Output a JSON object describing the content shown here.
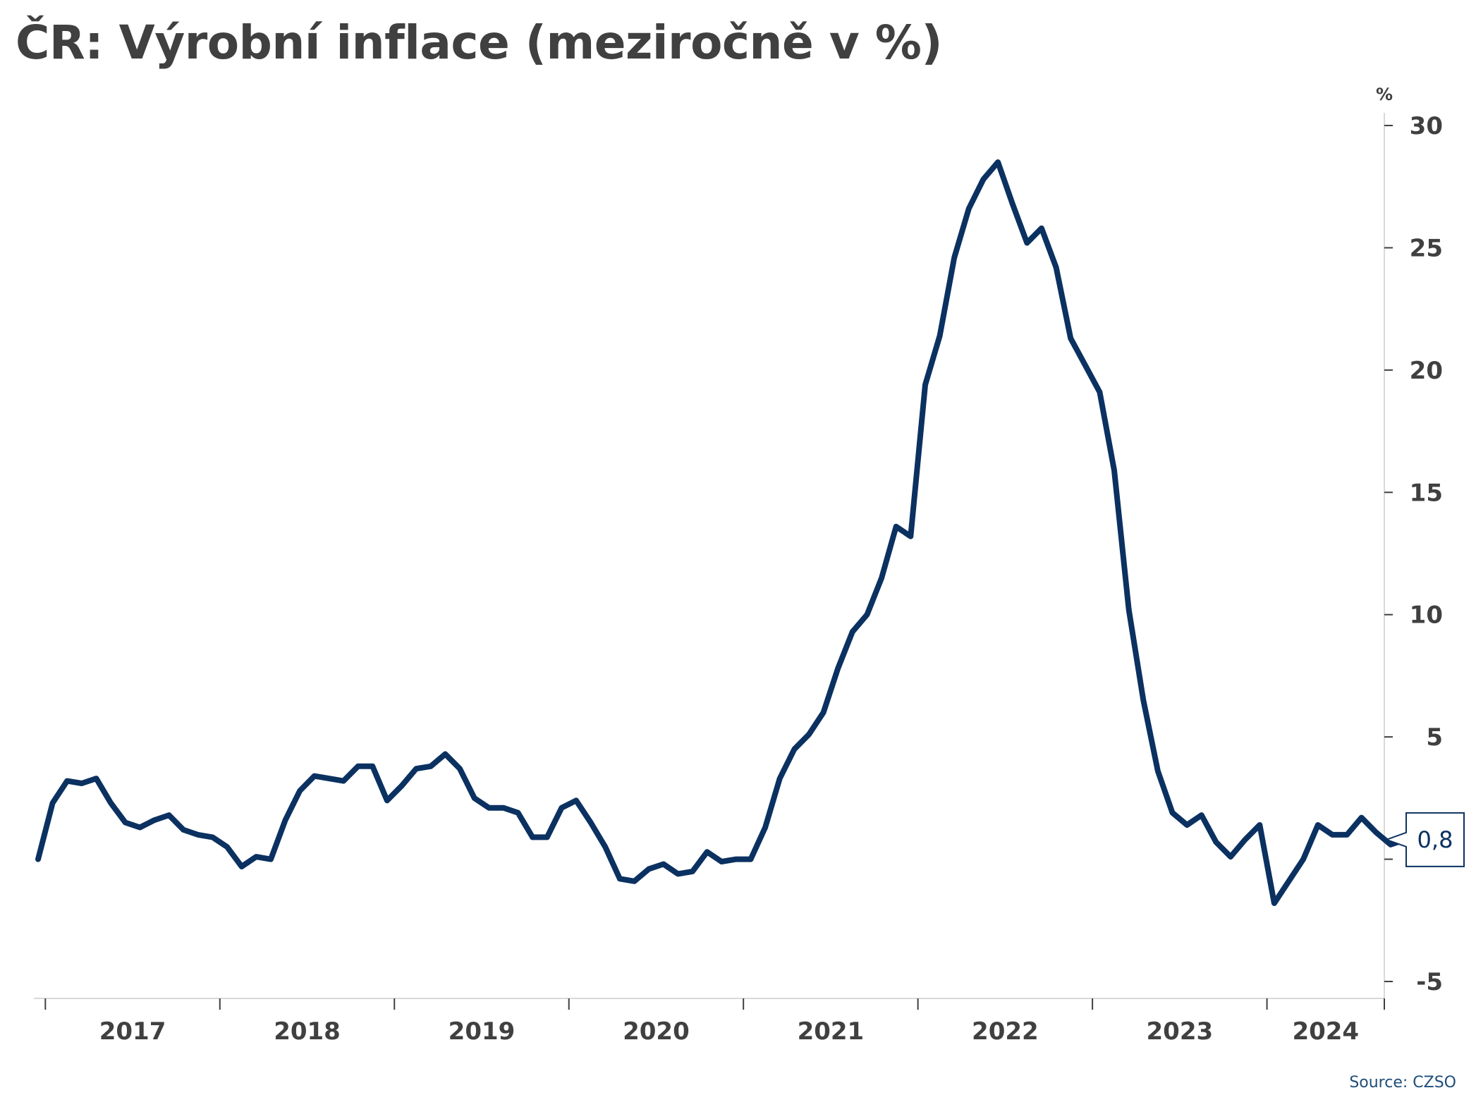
{
  "title": "ČR: Výrobní inflace (meziročně v %)",
  "source": "Source: CZSO",
  "colors": {
    "line": "#0b3161",
    "text": "#404040",
    "axis": "#404040",
    "source": "#1f4e79"
  },
  "chart_data": {
    "type": "line",
    "title": "ČR: Výrobní inflace (meziročně v %)",
    "xlabel": "",
    "ylabel": "%",
    "unit_label": "%",
    "y_axis_side": "right",
    "grid": false,
    "legend": "none",
    "ylim": [
      -5,
      30
    ],
    "yticks": [
      -5,
      0,
      5,
      10,
      15,
      20,
      25,
      30
    ],
    "ytick_labels": [
      "-5",
      "",
      "5",
      "10",
      "15",
      "20",
      "25",
      "30"
    ],
    "x_start": "2016-12",
    "x_end": "2024-06",
    "year_ticks": [
      2017,
      2018,
      2019,
      2020,
      2021,
      2022,
      2023,
      2024
    ],
    "last_value_label": "0,8",
    "series": [
      {
        "values": [
          0.0,
          2.3,
          3.2,
          3.1,
          3.3,
          2.3,
          1.5,
          1.3,
          1.6,
          1.8,
          1.2,
          1.0,
          0.9,
          0.5,
          -0.3,
          0.1,
          0.0,
          1.6,
          2.8,
          3.4,
          3.3,
          3.2,
          3.8,
          3.8,
          2.4,
          3.0,
          3.7,
          3.8,
          4.3,
          3.7,
          2.5,
          2.1,
          2.1,
          1.9,
          0.9,
          0.9,
          2.1,
          2.4,
          1.5,
          0.5,
          -0.8,
          -0.9,
          -0.4,
          -0.2,
          -0.6,
          -0.5,
          0.3,
          -0.1,
          0.0,
          0.0,
          1.3,
          3.3,
          4.5,
          5.1,
          6.0,
          7.8,
          9.3,
          10.0,
          11.5,
          13.6,
          13.2,
          19.4,
          21.4,
          24.6,
          26.6,
          27.8,
          28.5,
          26.8,
          25.2,
          25.8,
          24.2,
          21.3,
          20.2,
          19.1,
          15.9,
          10.2,
          6.5,
          3.6,
          1.9,
          1.4,
          1.8,
          0.7,
          0.1,
          0.8,
          1.4,
          -1.8,
          -0.9,
          0.0,
          1.4,
          1.0,
          1.0,
          1.7,
          1.1,
          0.6,
          0.8
        ]
      }
    ]
  }
}
